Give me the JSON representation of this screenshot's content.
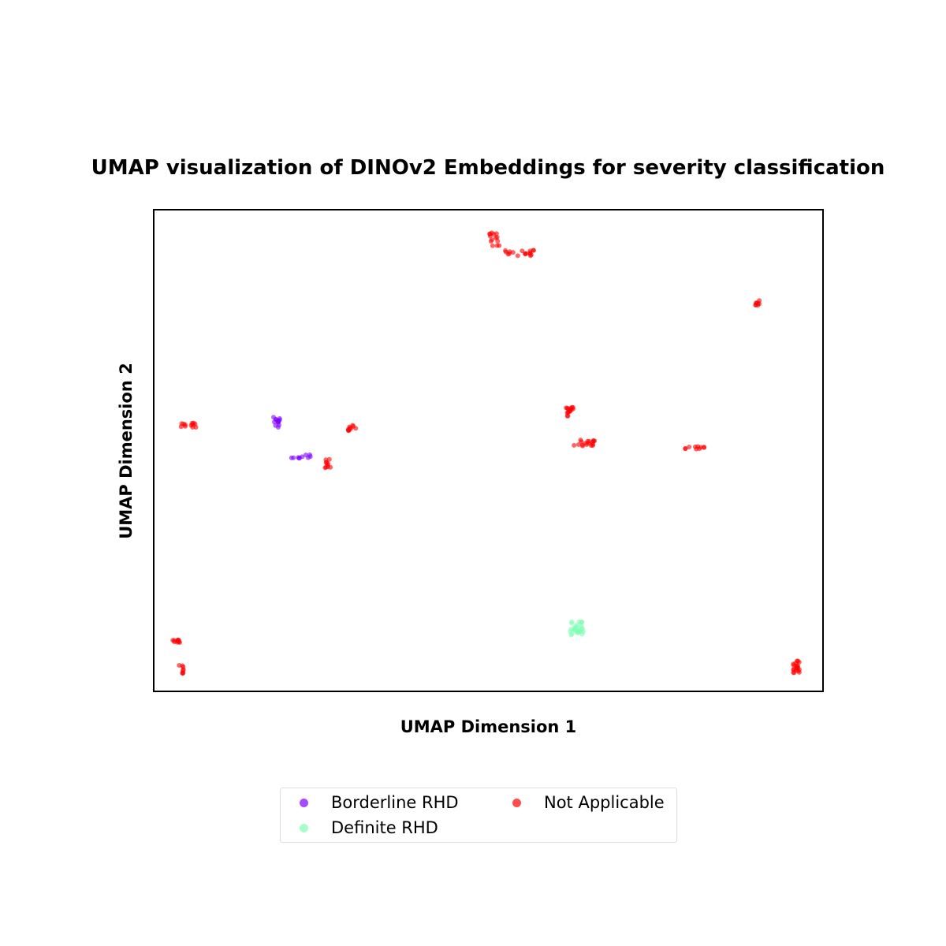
{
  "chart_data": {
    "type": "scatter",
    "title": "UMAP visualization of DINOv2 Embeddings for severity classification",
    "xlabel": "UMAP Dimension 1",
    "ylabel": "UMAP Dimension 2",
    "xlim": [
      0,
      100
    ],
    "ylim": [
      0,
      100
    ],
    "ticks_visible": false,
    "grid": false,
    "legend_position": "bottom-center",
    "series": [
      {
        "name": "Borderline RHD",
        "color": "#8000ff",
        "clusters": [
          {
            "x": 18.4,
            "y": 55.9,
            "n": 14,
            "spread": [
              0.5,
              1.2
            ]
          },
          {
            "x": 22.0,
            "y": 48.7,
            "n": 10,
            "spread": [
              1.6,
              0.5
            ]
          }
        ]
      },
      {
        "name": "Definite RHD",
        "color": "#80ffb4",
        "clusters": [
          {
            "x": 63.2,
            "y": 13.2,
            "n": 30,
            "spread": [
              1.0,
              1.5
            ]
          }
        ]
      },
      {
        "name": "Not Applicable",
        "color": "#ff0000",
        "clusters": [
          {
            "x": 51.0,
            "y": 93.5,
            "n": 14,
            "spread": [
              0.8,
              1.8
            ]
          },
          {
            "x": 54.4,
            "y": 91.0,
            "n": 18,
            "spread": [
              2.4,
              0.6
            ]
          },
          {
            "x": 90.0,
            "y": 80.6,
            "n": 8,
            "spread": [
              0.9,
              0.6
            ]
          },
          {
            "x": 5.2,
            "y": 55.3,
            "n": 12,
            "spread": [
              1.2,
              0.5
            ]
          },
          {
            "x": 29.6,
            "y": 54.7,
            "n": 10,
            "spread": [
              0.6,
              0.6
            ]
          },
          {
            "x": 26.0,
            "y": 47.3,
            "n": 10,
            "spread": [
              0.4,
              0.9
            ]
          },
          {
            "x": 62.0,
            "y": 58.0,
            "n": 16,
            "spread": [
              0.7,
              1.0
            ]
          },
          {
            "x": 64.4,
            "y": 51.6,
            "n": 18,
            "spread": [
              1.6,
              0.7
            ]
          },
          {
            "x": 80.6,
            "y": 50.6,
            "n": 10,
            "spread": [
              1.8,
              0.3
            ]
          },
          {
            "x": 3.4,
            "y": 10.5,
            "n": 10,
            "spread": [
              0.6,
              0.4
            ]
          },
          {
            "x": 4.1,
            "y": 4.5,
            "n": 8,
            "spread": [
              0.4,
              1.0
            ]
          },
          {
            "x": 96.0,
            "y": 5.1,
            "n": 20,
            "spread": [
              0.5,
              1.3
            ]
          }
        ]
      }
    ]
  }
}
